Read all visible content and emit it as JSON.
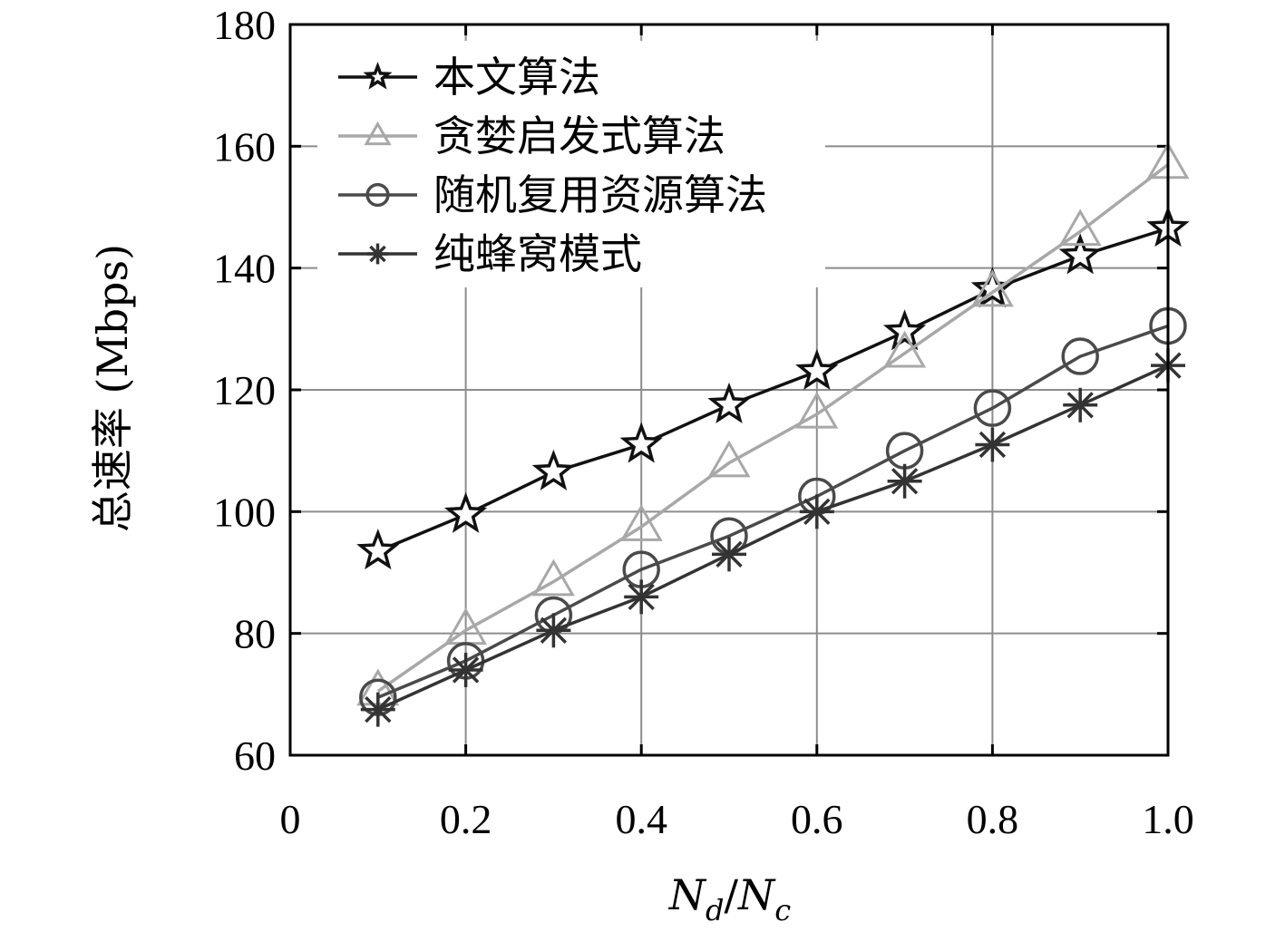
{
  "chart_data": {
    "type": "line",
    "xlabel": "N_d/N_c",
    "xlabel_parts": {
      "main1": "N",
      "sub1": "d",
      "slash": "/",
      "main2": "N",
      "sub2": "c"
    },
    "ylabel": "总速率 (Mbps)",
    "xlim": [
      0,
      1.0
    ],
    "ylim": [
      60,
      180
    ],
    "x_ticks": [
      "0",
      "0.2",
      "0.4",
      "0.6",
      "0.8",
      "1.0"
    ],
    "y_ticks": [
      "60",
      "80",
      "100",
      "120",
      "140",
      "160",
      "180"
    ],
    "grid": true,
    "legend_position": "top-left",
    "x": [
      0.1,
      0.2,
      0.3,
      0.4,
      0.5,
      0.6,
      0.7,
      0.8,
      0.9,
      1.0
    ],
    "series": [
      {
        "name": "本文算法",
        "marker": "star",
        "color": "#111111",
        "values": [
          93.5,
          99.5,
          106.5,
          111,
          117.5,
          123,
          129.5,
          136.5,
          142,
          146.5
        ]
      },
      {
        "name": "贪婪启发式算法",
        "marker": "triangle",
        "color": "#a8a8a8",
        "values": [
          70.5,
          80.5,
          88.5,
          97.5,
          108,
          116,
          126,
          136,
          146,
          157
        ]
      },
      {
        "name": "随机复用资源算法",
        "marker": "circle",
        "color": "#4a4a4a",
        "values": [
          69.5,
          75.5,
          83,
          90.5,
          96,
          102.5,
          110,
          117,
          125.5,
          130.5
        ]
      },
      {
        "name": "纯蜂窝模式",
        "marker": "asterisk",
        "color": "#333333",
        "values": [
          67.5,
          74,
          80.5,
          86,
          93,
          100,
          105,
          111,
          117.5,
          124
        ]
      }
    ]
  }
}
